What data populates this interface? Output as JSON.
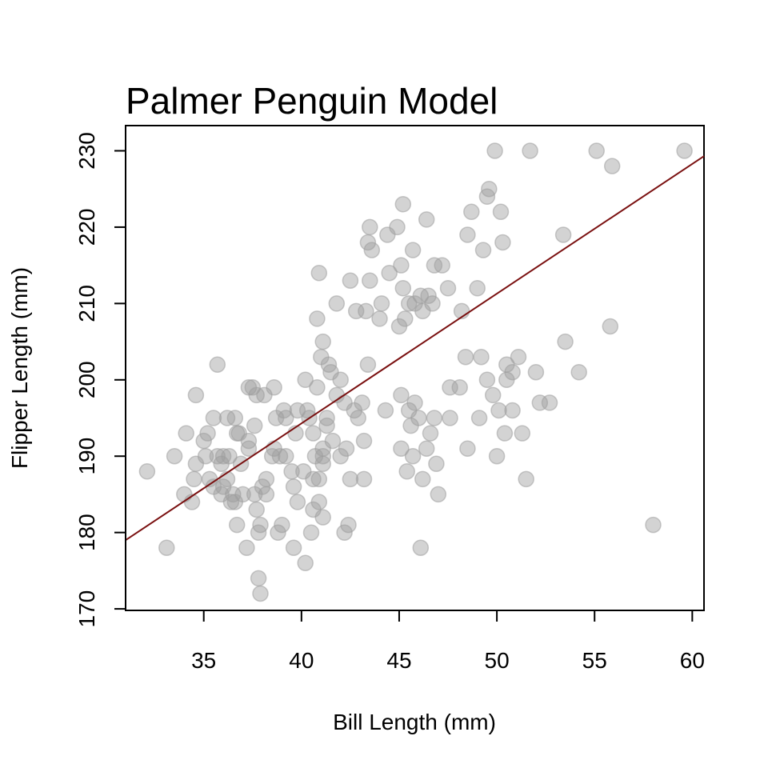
{
  "chart_data": {
    "type": "scatter",
    "title": "Palmer Penguin Model",
    "xlabel": "Bill Length (mm)",
    "ylabel": "Flipper Length (mm)",
    "xlim": [
      31,
      60.6
    ],
    "ylim": [
      169.8,
      233.3
    ],
    "xticks": [
      35,
      40,
      45,
      50,
      55,
      60
    ],
    "yticks": [
      170,
      180,
      190,
      200,
      210,
      220,
      230
    ],
    "grid": false,
    "legend": "none",
    "point_color": "#9e9e9e",
    "point_opacity": 0.45,
    "line_color": "#7a1010",
    "regression_line": {
      "x": [
        31,
        60.6
      ],
      "y": [
        179.0,
        229.3
      ]
    },
    "points": [
      [
        32.1,
        188
      ],
      [
        33.1,
        178
      ],
      [
        33.5,
        190
      ],
      [
        34.0,
        185
      ],
      [
        34.1,
        193
      ],
      [
        34.4,
        184
      ],
      [
        34.5,
        187
      ],
      [
        34.6,
        189
      ],
      [
        34.6,
        198
      ],
      [
        35.0,
        192
      ],
      [
        35.1,
        190
      ],
      [
        35.2,
        193
      ],
      [
        35.3,
        187
      ],
      [
        35.5,
        195
      ],
      [
        35.5,
        186
      ],
      [
        35.7,
        190
      ],
      [
        35.7,
        202
      ],
      [
        35.9,
        189
      ],
      [
        35.9,
        185
      ],
      [
        36.0,
        190
      ],
      [
        36.0,
        186
      ],
      [
        36.2,
        187
      ],
      [
        36.2,
        195
      ],
      [
        36.3,
        190
      ],
      [
        36.4,
        184
      ],
      [
        36.5,
        185
      ],
      [
        36.6,
        184
      ],
      [
        36.6,
        195
      ],
      [
        36.7,
        193
      ],
      [
        36.7,
        181
      ],
      [
        36.8,
        193
      ],
      [
        36.9,
        189
      ],
      [
        37.0,
        185
      ],
      [
        37.2,
        178
      ],
      [
        37.3,
        191
      ],
      [
        37.3,
        192
      ],
      [
        37.3,
        199
      ],
      [
        37.5,
        199
      ],
      [
        37.6,
        194
      ],
      [
        37.6,
        185
      ],
      [
        37.7,
        183
      ],
      [
        37.7,
        198
      ],
      [
        37.8,
        180
      ],
      [
        37.8,
        174
      ],
      [
        37.9,
        172
      ],
      [
        37.9,
        181
      ],
      [
        38.0,
        186
      ],
      [
        38.1,
        198
      ],
      [
        38.2,
        185
      ],
      [
        38.2,
        187
      ],
      [
        38.5,
        190
      ],
      [
        38.6,
        191
      ],
      [
        38.6,
        199
      ],
      [
        38.7,
        195
      ],
      [
        38.8,
        180
      ],
      [
        38.9,
        190
      ],
      [
        39.0,
        181
      ],
      [
        39.1,
        196
      ],
      [
        39.2,
        190
      ],
      [
        39.2,
        195
      ],
      [
        39.5,
        188
      ],
      [
        39.6,
        186
      ],
      [
        39.6,
        178
      ],
      [
        39.7,
        193
      ],
      [
        39.8,
        184
      ],
      [
        39.8,
        196
      ],
      [
        40.1,
        188
      ],
      [
        40.2,
        176
      ],
      [
        40.2,
        200
      ],
      [
        40.3,
        196
      ],
      [
        40.4,
        195
      ],
      [
        40.5,
        180
      ],
      [
        40.6,
        193
      ],
      [
        40.6,
        187
      ],
      [
        40.6,
        183
      ],
      [
        40.7,
        190
      ],
      [
        40.8,
        199
      ],
      [
        40.8,
        208
      ],
      [
        40.9,
        187
      ],
      [
        40.9,
        184
      ],
      [
        40.9,
        214
      ],
      [
        41.0,
        203
      ],
      [
        41.1,
        190
      ],
      [
        41.1,
        182
      ],
      [
        41.1,
        205
      ],
      [
        41.1,
        191
      ],
      [
        41.1,
        189
      ],
      [
        41.3,
        195
      ],
      [
        41.3,
        194
      ],
      [
        41.4,
        202
      ],
      [
        41.5,
        201
      ],
      [
        41.6,
        192
      ],
      [
        41.8,
        198
      ],
      [
        41.8,
        210
      ],
      [
        42.0,
        200
      ],
      [
        42.0,
        190
      ],
      [
        42.2,
        180
      ],
      [
        42.2,
        197
      ],
      [
        42.3,
        191
      ],
      [
        42.4,
        181
      ],
      [
        42.5,
        187
      ],
      [
        42.5,
        213
      ],
      [
        42.7,
        196
      ],
      [
        42.8,
        209
      ],
      [
        42.9,
        195
      ],
      [
        43.1,
        197
      ],
      [
        43.2,
        187
      ],
      [
        43.2,
        192
      ],
      [
        43.3,
        209
      ],
      [
        43.4,
        202
      ],
      [
        43.4,
        218
      ],
      [
        43.5,
        213
      ],
      [
        43.5,
        220
      ],
      [
        43.6,
        217
      ],
      [
        44.0,
        208
      ],
      [
        44.1,
        210
      ],
      [
        44.3,
        196
      ],
      [
        44.4,
        219
      ],
      [
        44.5,
        214
      ],
      [
        44.9,
        220
      ],
      [
        45.0,
        207
      ],
      [
        45.1,
        198
      ],
      [
        45.1,
        215
      ],
      [
        45.1,
        191
      ],
      [
        45.2,
        223
      ],
      [
        45.2,
        212
      ],
      [
        45.3,
        208
      ],
      [
        45.4,
        188
      ],
      [
        45.5,
        210
      ],
      [
        45.5,
        196
      ],
      [
        45.6,
        194
      ],
      [
        45.7,
        190
      ],
      [
        45.7,
        217
      ],
      [
        45.8,
        197
      ],
      [
        45.8,
        210
      ],
      [
        46.0,
        195
      ],
      [
        46.1,
        211
      ],
      [
        46.1,
        178
      ],
      [
        46.2,
        187
      ],
      [
        46.2,
        209
      ],
      [
        46.4,
        191
      ],
      [
        46.4,
        221
      ],
      [
        46.5,
        211
      ],
      [
        46.6,
        193
      ],
      [
        46.7,
        210
      ],
      [
        46.8,
        215
      ],
      [
        46.8,
        195
      ],
      [
        46.9,
        189
      ],
      [
        47.0,
        185
      ],
      [
        47.2,
        215
      ],
      [
        47.5,
        212
      ],
      [
        47.6,
        199
      ],
      [
        47.6,
        195
      ],
      [
        48.1,
        199
      ],
      [
        48.2,
        209
      ],
      [
        48.4,
        203
      ],
      [
        48.5,
        191
      ],
      [
        48.5,
        219
      ],
      [
        48.7,
        222
      ],
      [
        49.0,
        212
      ],
      [
        49.1,
        195
      ],
      [
        49.2,
        203
      ],
      [
        49.3,
        217
      ],
      [
        49.5,
        224
      ],
      [
        49.5,
        200
      ],
      [
        49.6,
        225
      ],
      [
        49.8,
        198
      ],
      [
        49.9,
        230
      ],
      [
        50.0,
        190
      ],
      [
        50.1,
        196
      ],
      [
        50.2,
        222
      ],
      [
        50.3,
        218
      ],
      [
        50.4,
        193
      ],
      [
        50.5,
        202
      ],
      [
        50.5,
        200
      ],
      [
        50.8,
        196
      ],
      [
        50.8,
        201
      ],
      [
        51.1,
        203
      ],
      [
        51.3,
        193
      ],
      [
        51.5,
        187
      ],
      [
        51.7,
        230
      ],
      [
        52.0,
        201
      ],
      [
        52.2,
        197
      ],
      [
        52.7,
        197
      ],
      [
        53.4,
        219
      ],
      [
        53.5,
        205
      ],
      [
        54.2,
        201
      ],
      [
        55.1,
        230
      ],
      [
        55.8,
        207
      ],
      [
        55.9,
        228
      ],
      [
        58.0,
        181
      ],
      [
        59.6,
        230
      ]
    ]
  }
}
